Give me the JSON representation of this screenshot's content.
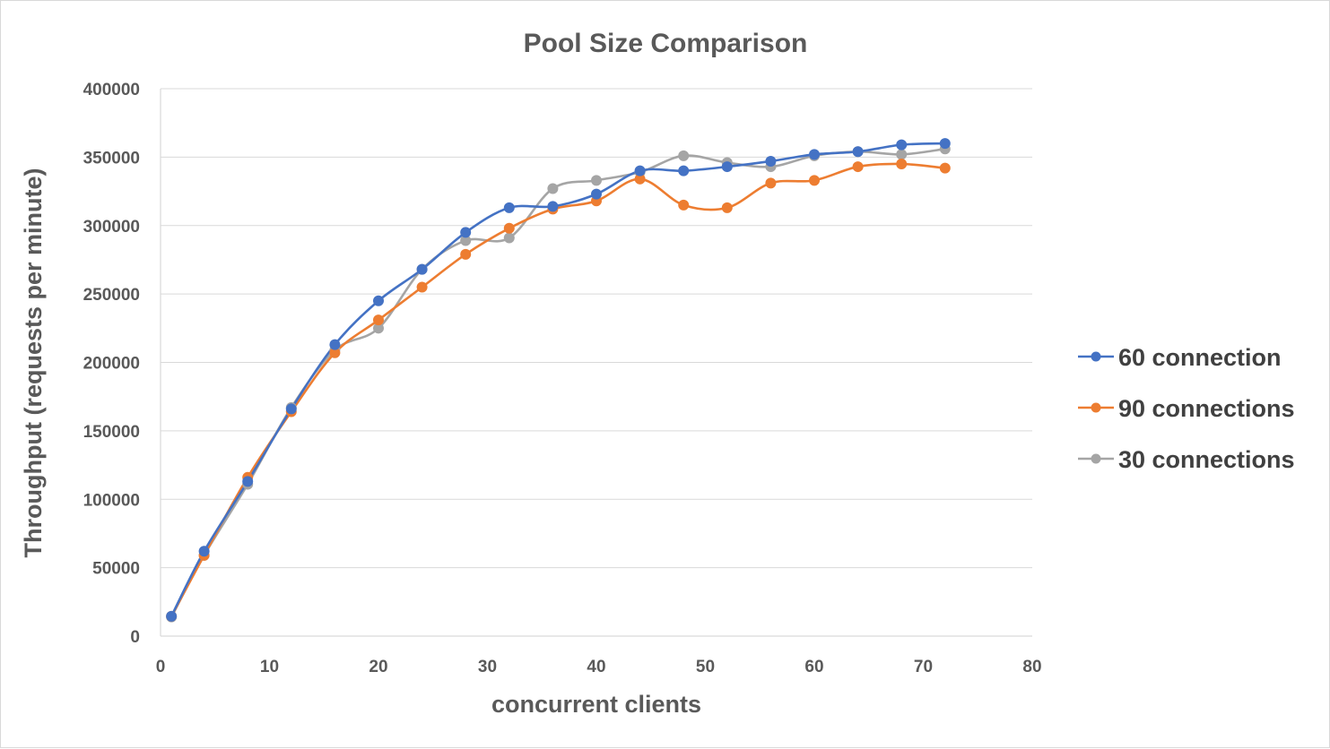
{
  "chart_data": {
    "type": "line",
    "title": "Pool Size Comparison",
    "xlabel": "concurrent clients",
    "ylabel": "Throughput (requests per minute)",
    "xlim": [
      0,
      80
    ],
    "ylim": [
      0,
      400000
    ],
    "x_ticks": [
      0,
      10,
      20,
      30,
      40,
      50,
      60,
      70,
      80
    ],
    "y_ticks": [
      0,
      50000,
      100000,
      150000,
      200000,
      250000,
      300000,
      350000,
      400000
    ],
    "x_tick_labels": [
      "0",
      "10",
      "20",
      "30",
      "40",
      "50",
      "60",
      "70",
      "80"
    ],
    "y_tick_labels": [
      "0",
      "50000",
      "100000",
      "150000",
      "200000",
      "250000",
      "300000",
      "350000",
      "400000"
    ],
    "grid": "horizontal",
    "legend_position": "right",
    "smooth": true,
    "x": [
      1,
      4,
      8,
      12,
      16,
      20,
      24,
      28,
      32,
      36,
      40,
      44,
      48,
      52,
      56,
      60,
      64,
      68,
      72
    ],
    "series": [
      {
        "name": "60 connection",
        "color": "#4472c4",
        "values": [
          14500,
          62000,
          113000,
          166000,
          213000,
          245000,
          268000,
          295000,
          313000,
          314000,
          323000,
          340000,
          340000,
          343000,
          347000,
          352000,
          354000,
          359000,
          360000
        ]
      },
      {
        "name": "90 connections",
        "color": "#ed7d31",
        "values": [
          14500,
          59000,
          116000,
          164000,
          207000,
          231000,
          255000,
          279000,
          298000,
          312000,
          318000,
          334000,
          315000,
          313000,
          331000,
          333000,
          343000,
          345000,
          342000
        ]
      },
      {
        "name": "30 connections",
        "color": "#a5a5a5",
        "values": [
          14000,
          59000,
          111000,
          167000,
          209000,
          225000,
          268000,
          289000,
          291000,
          327000,
          333000,
          339000,
          351000,
          346000,
          343000,
          351000,
          354000,
          352000,
          356000
        ]
      }
    ]
  }
}
